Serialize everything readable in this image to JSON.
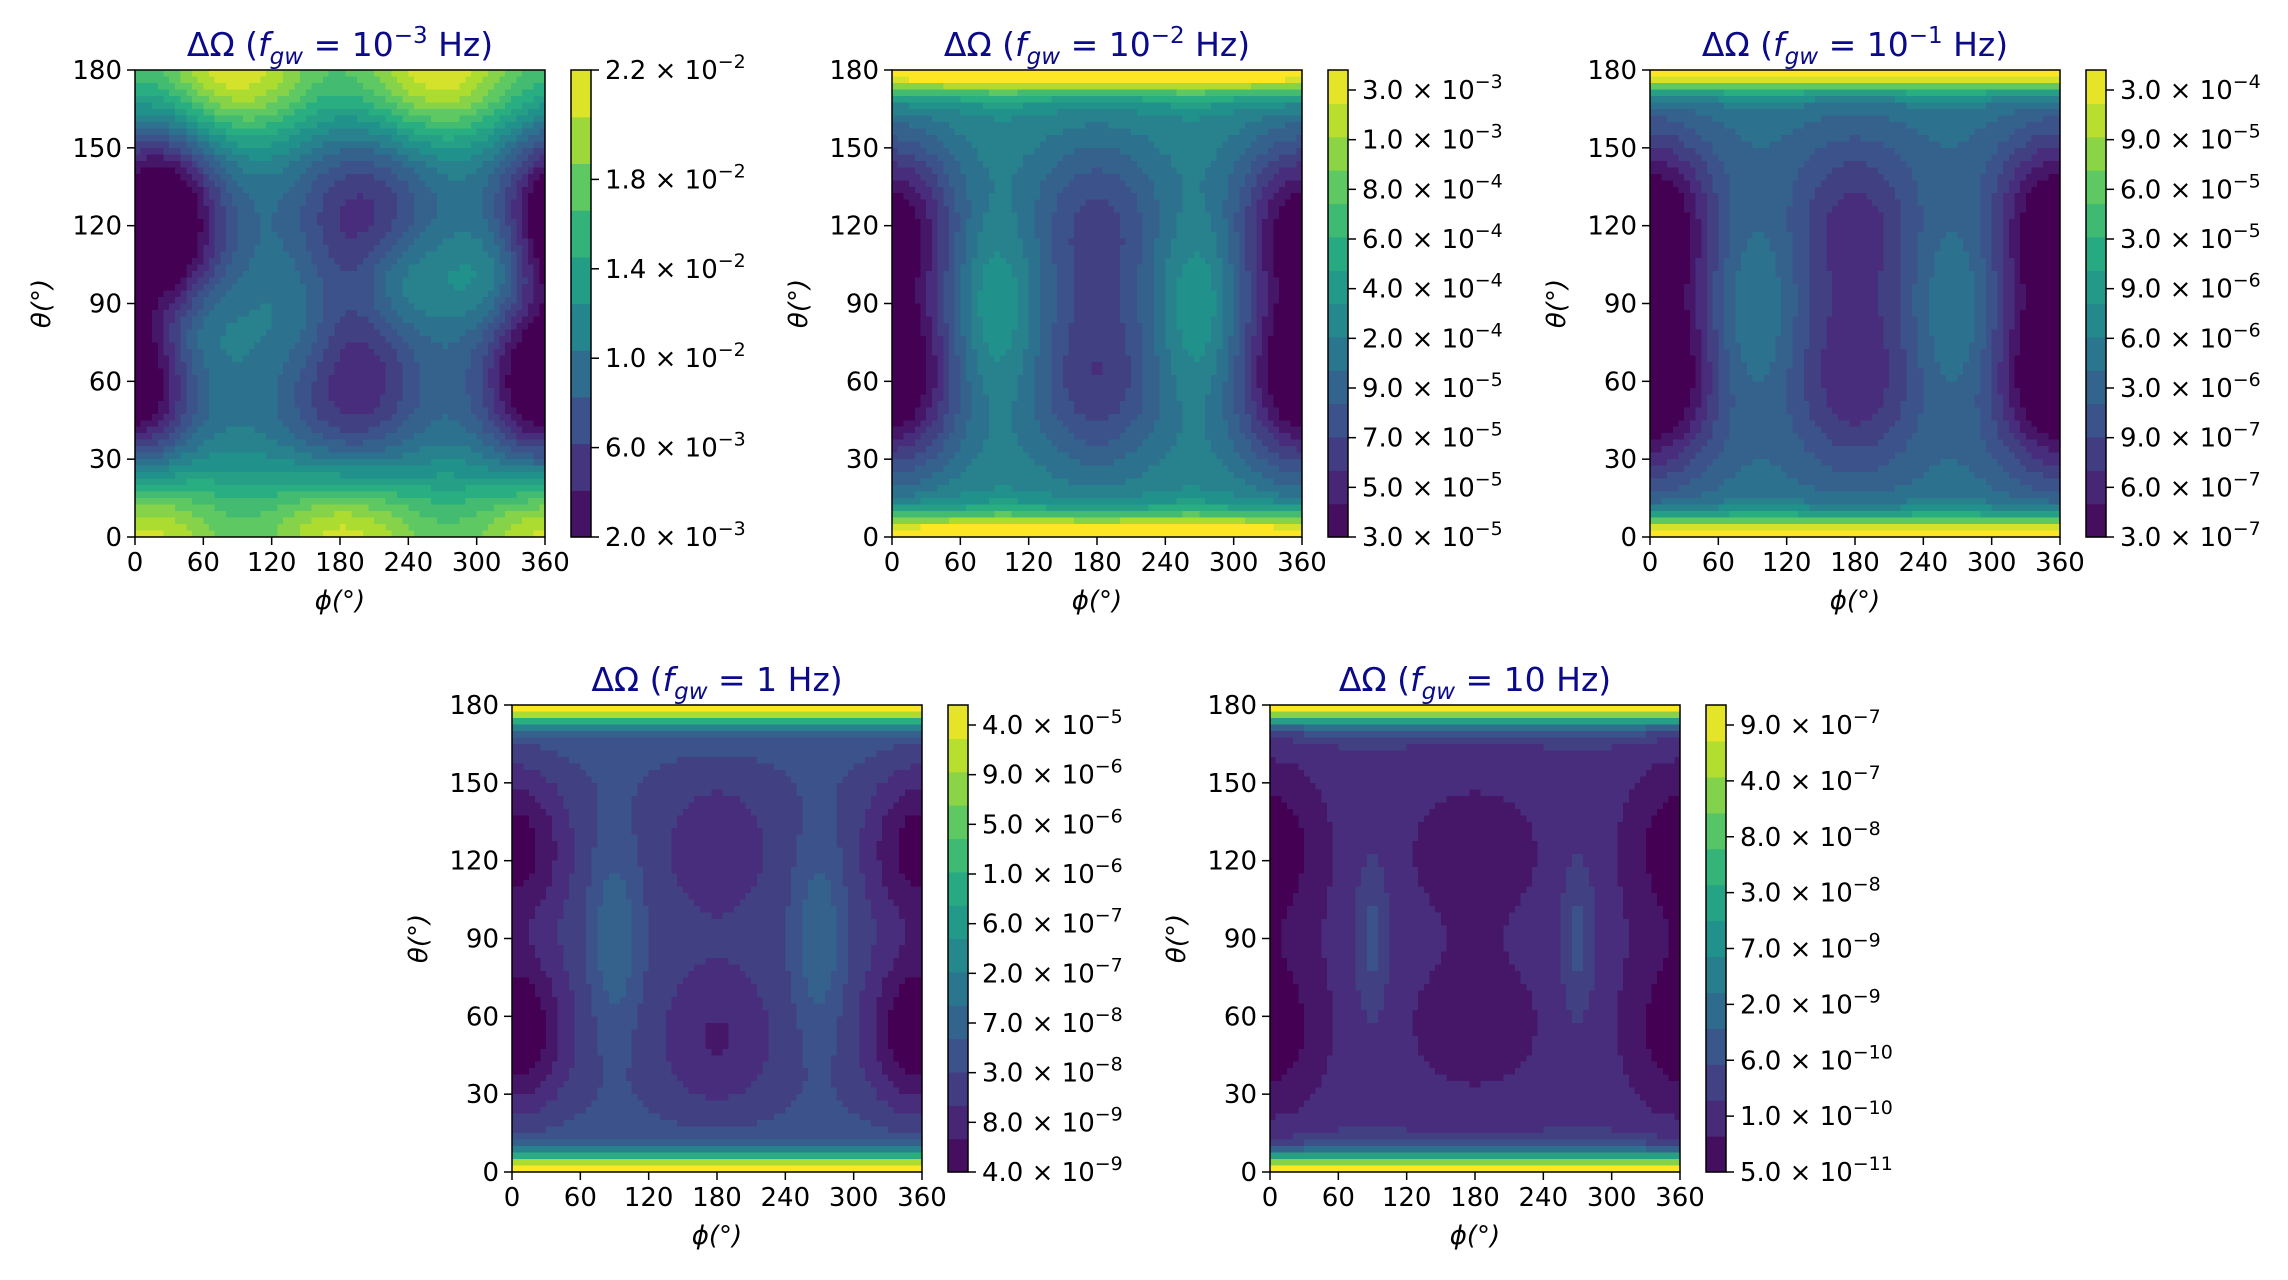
{
  "colors": {
    "title": "#0a0a8a",
    "viridis": [
      "#440154",
      "#472d7b",
      "#3b528b",
      "#2c728e",
      "#21918c",
      "#28ae80",
      "#5ec962",
      "#addc30",
      "#fde725"
    ]
  },
  "chart_data": [
    {
      "type": "heatmap",
      "title": "ΔΩ (f_gw = 10^-3 Hz)",
      "title_parts": {
        "prefix": "ΔΩ (",
        "f": "f",
        "sub": "gw",
        "eq": " = 10",
        "sup": "−3",
        "suffix": " Hz)"
      },
      "xlabel": "ϕ(°)",
      "ylabel": "θ(°)",
      "xlim": [
        0,
        360
      ],
      "ylim": [
        0,
        180
      ],
      "xticks": [
        "0",
        "60",
        "120",
        "180",
        "240",
        "300",
        "360"
      ],
      "yticks": [
        "0",
        "30",
        "60",
        "90",
        "120",
        "150",
        "180"
      ],
      "colorbar_ticks": [
        "2.0 × 10^-3",
        "6.0 × 10^-3",
        "1.0 × 10^-2",
        "1.4 × 10^-2",
        "1.8 × 10^-2",
        "2.2 × 10^-2"
      ],
      "colorbar_range": [
        0.002,
        0.022
      ]
    },
    {
      "type": "heatmap",
      "title": "ΔΩ (f_gw = 10^-2 Hz)",
      "title_parts": {
        "prefix": "ΔΩ (",
        "f": "f",
        "sub": "gw",
        "eq": " = 10",
        "sup": "−2",
        "suffix": " Hz)"
      },
      "xlabel": "ϕ(°)",
      "ylabel": "θ(°)",
      "xlim": [
        0,
        360
      ],
      "ylim": [
        0,
        180
      ],
      "xticks": [
        "0",
        "60",
        "120",
        "180",
        "240",
        "300",
        "360"
      ],
      "yticks": [
        "0",
        "30",
        "60",
        "90",
        "120",
        "150",
        "180"
      ],
      "colorbar_ticks": [
        "3.0 × 10^-5",
        "5.0 × 10^-5",
        "7.0 × 10^-5",
        "9.0 × 10^-5",
        "2.0 × 10^-4",
        "4.0 × 10^-4",
        "6.0 × 10^-4",
        "8.0 × 10^-4",
        "1.0 × 10^-3",
        "3.0 × 10^-3"
      ],
      "colorbar_range": [
        3e-05,
        0.0035
      ]
    },
    {
      "type": "heatmap",
      "title": "ΔΩ (f_gw = 10^-1 Hz)",
      "title_parts": {
        "prefix": "ΔΩ (",
        "f": "f",
        "sub": "gw",
        "eq": " = 10",
        "sup": "−1",
        "suffix": " Hz)"
      },
      "xlabel": "ϕ(°)",
      "ylabel": "θ(°)",
      "xlim": [
        0,
        360
      ],
      "ylim": [
        0,
        180
      ],
      "xticks": [
        "0",
        "60",
        "120",
        "180",
        "240",
        "300",
        "360"
      ],
      "yticks": [
        "0",
        "30",
        "60",
        "90",
        "120",
        "150",
        "180"
      ],
      "colorbar_ticks": [
        "3.0 × 10^-7",
        "6.0 × 10^-7",
        "9.0 × 10^-7",
        "3.0 × 10^-6",
        "6.0 × 10^-6",
        "9.0 × 10^-6",
        "3.0 × 10^-5",
        "6.0 × 10^-5",
        "9.0 × 10^-5",
        "3.0 × 10^-4"
      ],
      "colorbar_range": [
        3e-07,
        0.00033
      ]
    },
    {
      "type": "heatmap",
      "title": "ΔΩ (f_gw = 1 Hz)",
      "title_parts": {
        "prefix": "ΔΩ (",
        "f": "f",
        "sub": "gw",
        "eq": " = 1",
        "sup": "",
        "suffix": " Hz)"
      },
      "xlabel": "ϕ(°)",
      "ylabel": "θ(°)",
      "xlim": [
        0,
        360
      ],
      "ylim": [
        0,
        180
      ],
      "xticks": [
        "0",
        "60",
        "120",
        "180",
        "240",
        "300",
        "360"
      ],
      "yticks": [
        "0",
        "30",
        "60",
        "90",
        "120",
        "150",
        "180"
      ],
      "colorbar_ticks": [
        "4.0 × 10^-9",
        "8.0 × 10^-9",
        "3.0 × 10^-8",
        "7.0 × 10^-8",
        "2.0 × 10^-7",
        "6.0 × 10^-7",
        "1.0 × 10^-6",
        "5.0 × 10^-6",
        "9.0 × 10^-6",
        "4.0 × 10^-5"
      ],
      "colorbar_range": [
        4e-09,
        4e-05
      ]
    },
    {
      "type": "heatmap",
      "title": "ΔΩ (f_gw = 10 Hz)",
      "title_parts": {
        "prefix": "ΔΩ (",
        "f": "f",
        "sub": "gw",
        "eq": " = 10",
        "sup": "",
        "suffix": " Hz)"
      },
      "xlabel": "ϕ(°)",
      "ylabel": "θ(°)",
      "xlim": [
        0,
        360
      ],
      "ylim": [
        0,
        180
      ],
      "xticks": [
        "0",
        "60",
        "120",
        "180",
        "240",
        "300",
        "360"
      ],
      "yticks": [
        "0",
        "30",
        "60",
        "90",
        "120",
        "150",
        "180"
      ],
      "colorbar_ticks": [
        "5.0 × 10^-11",
        "1.0 × 10^-10",
        "6.0 × 10^-10",
        "2.0 × 10^-9",
        "7.0 × 10^-9",
        "3.0 × 10^-8",
        "8.0 × 10^-8",
        "4.0 × 10^-7",
        "9.0 × 10^-7"
      ],
      "colorbar_range": [
        5e-11,
        1e-06
      ]
    }
  ]
}
